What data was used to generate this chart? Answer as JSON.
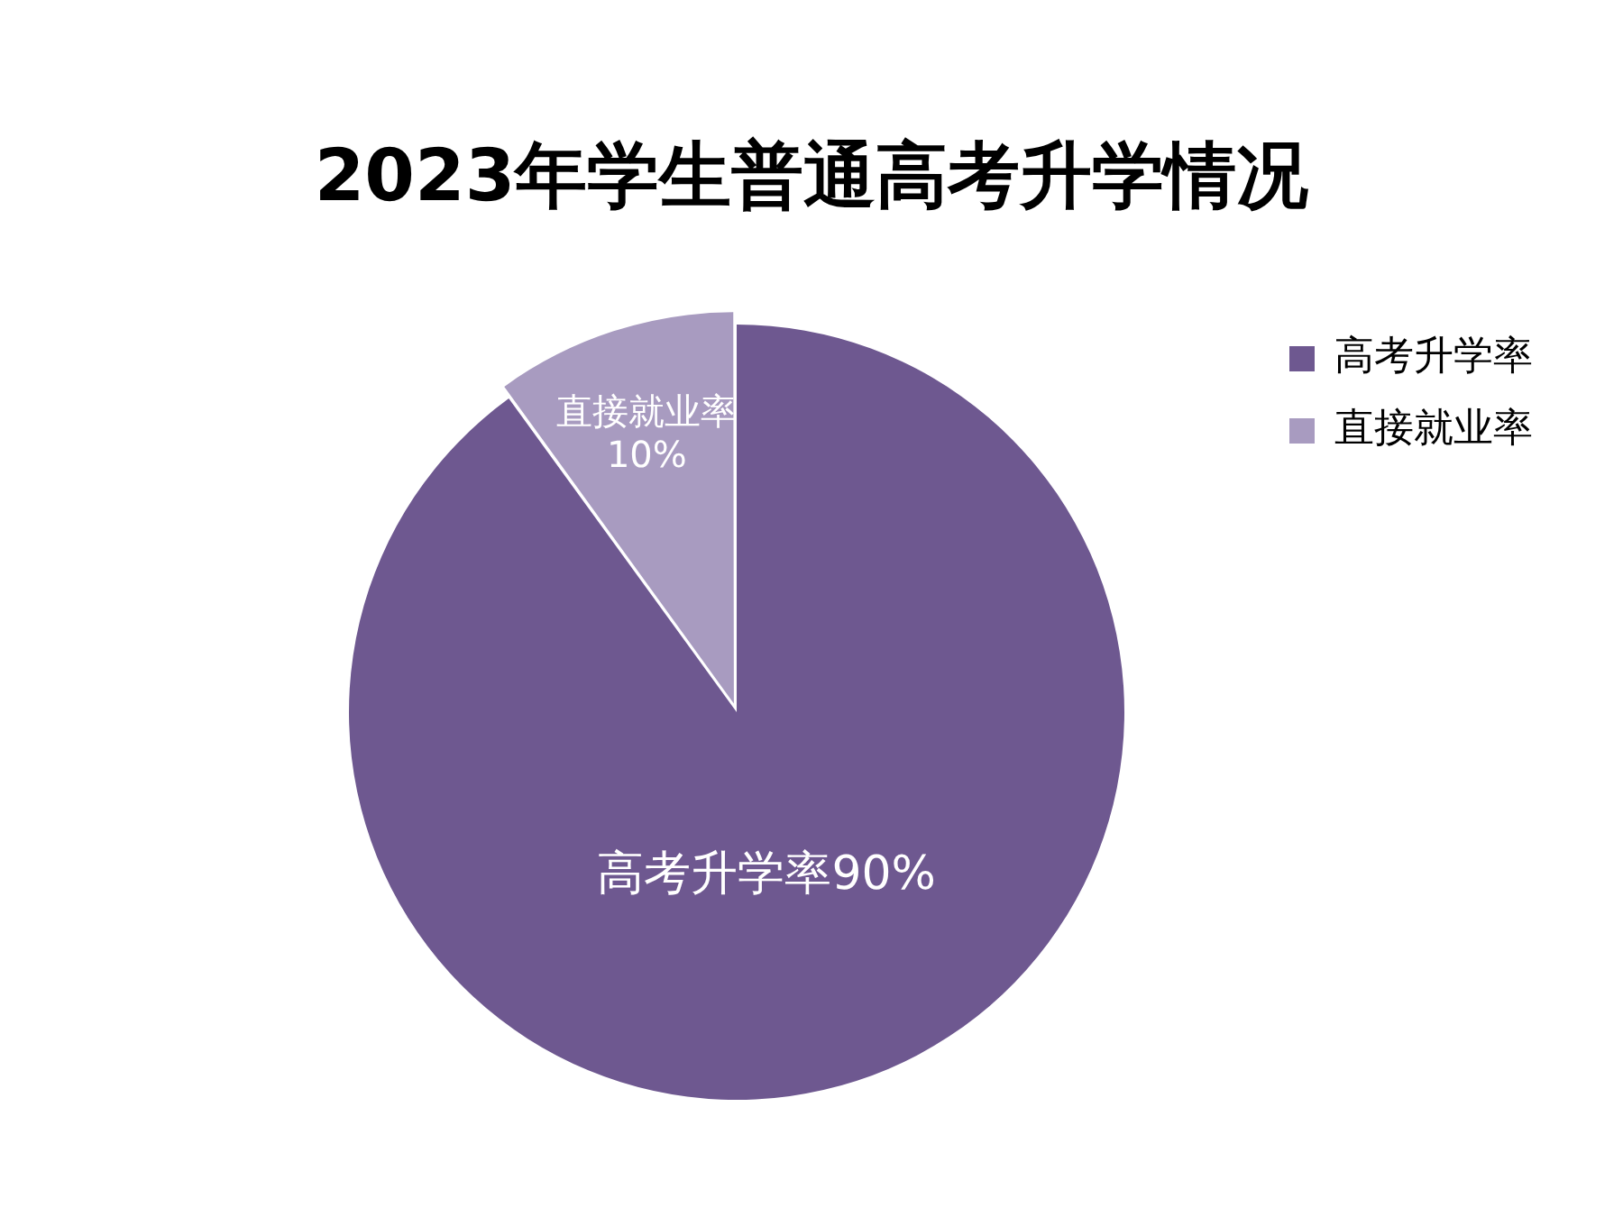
{
  "chart_data": {
    "type": "pie",
    "title": "2023年学生普通高考升学情况",
    "categories": [
      "高考升学率",
      "直接就业率"
    ],
    "values": [
      90,
      10
    ],
    "colors": [
      "#6e5890",
      "#a89bc0"
    ],
    "value_labels": [
      "高考升学率90%",
      "直接就业率10%"
    ],
    "legend": "right"
  }
}
